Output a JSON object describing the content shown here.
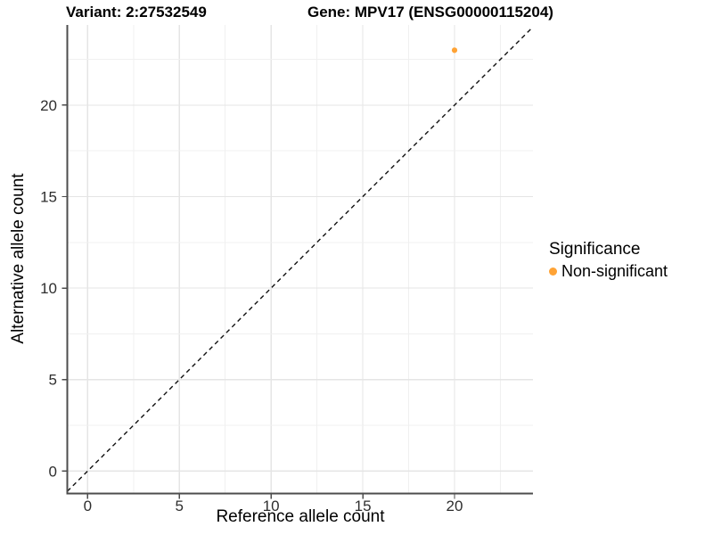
{
  "header": {
    "variant_title": "Variant: 2:27532549",
    "gene_title": "Gene: MPV17 (ENSG00000115204)"
  },
  "axes": {
    "x_title": "Reference allele count",
    "y_title": "Alternative allele count"
  },
  "legend": {
    "title": "Significance",
    "items": [
      {
        "label": "Non-significant",
        "color": "#FFA335"
      }
    ]
  },
  "colors": {
    "point": "#FFA335",
    "axis_line": "#4d4d4d",
    "tick_label": "#2e2e2e",
    "grid_major": "#e5e5e5",
    "grid_minor": "#f0f0f0",
    "identity_line": "#111111",
    "background": "#ffffff"
  },
  "chart_data": {
    "type": "scatter",
    "title": "Variant: 2:27532549 — Gene: MPV17 (ENSG00000115204)",
    "xlabel": "Reference allele count",
    "ylabel": "Alternative allele count",
    "x_ticks": [
      0,
      5,
      10,
      15,
      20
    ],
    "y_ticks": [
      0,
      5,
      10,
      15,
      20
    ],
    "xlim": [
      -1.11,
      24.28
    ],
    "ylim": [
      -1.23,
      24.38
    ],
    "grid": true,
    "grid_interval": 2.5,
    "legend_position": "right",
    "series": [
      {
        "name": "Non-significant",
        "color": "#FFA335",
        "points": [
          {
            "x": 20,
            "y": 23
          }
        ]
      }
    ],
    "reference_line": {
      "style": "dashed",
      "equation": "y = x",
      "color": "#111111"
    }
  }
}
